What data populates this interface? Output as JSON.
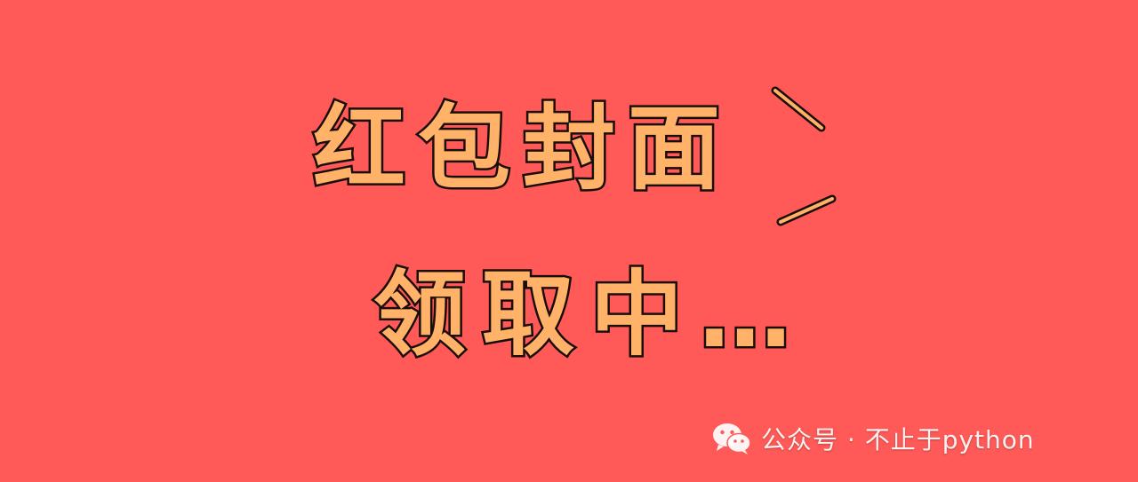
{
  "headline": {
    "line1": "红包封面",
    "line2": "领取中…"
  },
  "watermark": {
    "icon": "wechat-icon",
    "text": "公众号 · 不止于python"
  },
  "colors": {
    "background": "#FF5A57",
    "text_fill": "#FFB268",
    "text_outline": "#1a0d0a",
    "watermark": "#FFFFFF"
  }
}
